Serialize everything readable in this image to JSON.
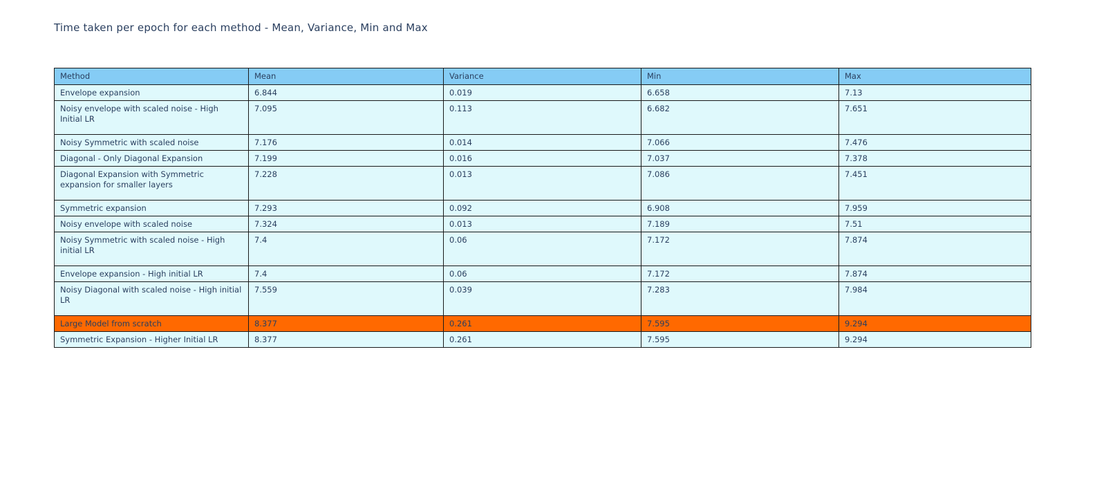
{
  "page": {
    "title": "Time taken per epoch for each method - Mean, Variance, Min and Max"
  },
  "table": {
    "columns": [
      "Method",
      "Mean",
      "Variance",
      "Min",
      "Max"
    ],
    "rows": [
      {
        "method": "Envelope expansion",
        "mean": "6.844",
        "variance": "0.019",
        "min": "6.658",
        "max": "7.13",
        "tall": false,
        "highlight": false
      },
      {
        "method": "Noisy envelope with scaled noise - High Initial LR",
        "mean": "7.095",
        "variance": "0.113",
        "min": "6.682",
        "max": "7.651",
        "tall": true,
        "highlight": false
      },
      {
        "method": "Noisy Symmetric with scaled noise",
        "mean": "7.176",
        "variance": "0.014",
        "min": "7.066",
        "max": "7.476",
        "tall": false,
        "highlight": false
      },
      {
        "method": "Diagonal - Only Diagonal Expansion",
        "mean": "7.199",
        "variance": "0.016",
        "min": "7.037",
        "max": "7.378",
        "tall": false,
        "highlight": false
      },
      {
        "method": "Diagonal Expansion with Symmetric expansion for smaller layers",
        "mean": "7.228",
        "variance": "0.013",
        "min": "7.086",
        "max": "7.451",
        "tall": true,
        "highlight": false
      },
      {
        "method": "Symmetric expansion",
        "mean": "7.293",
        "variance": "0.092",
        "min": "6.908",
        "max": "7.959",
        "tall": false,
        "highlight": false
      },
      {
        "method": "Noisy envelope with scaled noise",
        "mean": "7.324",
        "variance": "0.013",
        "min": "7.189",
        "max": "7.51",
        "tall": false,
        "highlight": false
      },
      {
        "method": "Noisy Symmetric with scaled noise - High initial LR",
        "mean": "7.4",
        "variance": "0.06",
        "min": "7.172",
        "max": "7.874",
        "tall": true,
        "highlight": false
      },
      {
        "method": "Envelope expansion - High initial LR",
        "mean": "7.4",
        "variance": "0.06",
        "min": "7.172",
        "max": "7.874",
        "tall": false,
        "highlight": false
      },
      {
        "method": "Noisy Diagonal with scaled noise - High initial LR",
        "mean": "7.559",
        "variance": "0.039",
        "min": "7.283",
        "max": "7.984",
        "tall": true,
        "highlight": false
      },
      {
        "method": "Large Model from scratch",
        "mean": "8.377",
        "variance": "0.261",
        "min": "7.595",
        "max": "9.294",
        "tall": false,
        "highlight": true
      },
      {
        "method": "Symmetric Expansion - Higher Initial LR",
        "mean": "8.377",
        "variance": "0.261",
        "min": "7.595",
        "max": "9.294",
        "tall": false,
        "highlight": false
      }
    ]
  },
  "colors": {
    "header_bg": "#85ccf5",
    "row_bg": "#dff9fc",
    "highlight_bg": "#ff6900",
    "text": "#2a3f5f",
    "border": "#1a1a1a"
  },
  "chart_data": {
    "type": "table",
    "title": "Time taken per epoch for each method - Mean, Variance, Min and Max",
    "columns": [
      "Method",
      "Mean",
      "Variance",
      "Min",
      "Max"
    ],
    "rows": [
      [
        "Envelope expansion",
        6.844,
        0.019,
        6.658,
        7.13
      ],
      [
        "Noisy envelope with scaled noise - High Initial LR",
        7.095,
        0.113,
        6.682,
        7.651
      ],
      [
        "Noisy Symmetric with scaled noise",
        7.176,
        0.014,
        7.066,
        7.476
      ],
      [
        "Diagonal - Only Diagonal Expansion",
        7.199,
        0.016,
        7.037,
        7.378
      ],
      [
        "Diagonal Expansion with Symmetric expansion for smaller layers",
        7.228,
        0.013,
        7.086,
        7.451
      ],
      [
        "Symmetric expansion",
        7.293,
        0.092,
        6.908,
        7.959
      ],
      [
        "Noisy envelope with scaled noise",
        7.324,
        0.013,
        7.189,
        7.51
      ],
      [
        "Noisy Symmetric with scaled noise - High initial LR",
        7.4,
        0.06,
        7.172,
        7.874
      ],
      [
        "Envelope expansion - High initial LR",
        7.4,
        0.06,
        7.172,
        7.874
      ],
      [
        "Noisy Diagonal with scaled noise - High initial LR",
        7.559,
        0.039,
        7.283,
        7.984
      ],
      [
        "Large Model from scratch",
        8.377,
        0.261,
        7.595,
        9.294
      ],
      [
        "Symmetric Expansion - Higher Initial LR",
        8.377,
        0.261,
        7.595,
        9.294
      ]
    ],
    "highlighted_row": "Large Model from scratch",
    "sorted_by": "Mean ascending"
  }
}
